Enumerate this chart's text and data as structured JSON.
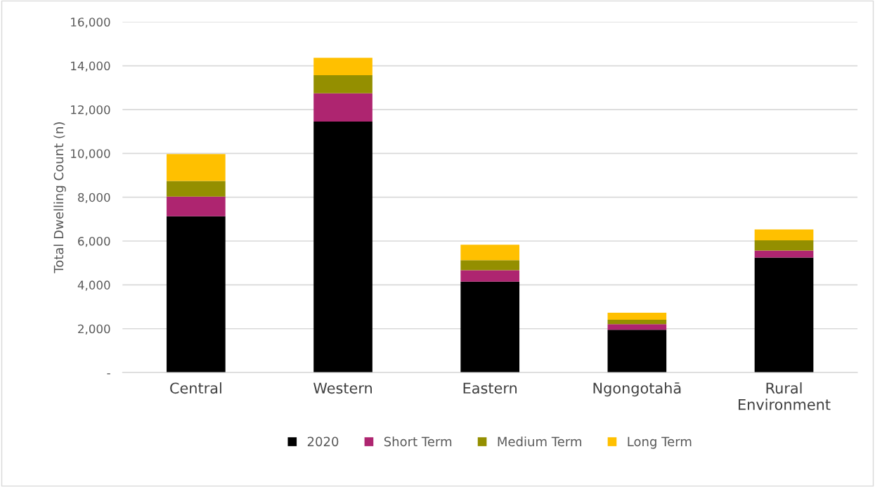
{
  "chart_data": {
    "type": "bar",
    "stacked": true,
    "ylabel": "Total Dwelling Count (n)",
    "categories": [
      "Central",
      "Western",
      "Eastern",
      "Ngongotahā",
      "Rural\nEnvironment"
    ],
    "series": [
      {
        "name": "2020",
        "color": "#000000",
        "values": [
          7130,
          11450,
          4150,
          1950,
          5250
        ]
      },
      {
        "name": "Short Term",
        "color": "#ae2570",
        "values": [
          900,
          1290,
          520,
          260,
          320
        ]
      },
      {
        "name": "Medium Term",
        "color": "#948f00",
        "values": [
          710,
          830,
          460,
          200,
          460
        ]
      },
      {
        "name": "Long Term",
        "color": "#ffc000",
        "values": [
          1230,
          790,
          700,
          320,
          500
        ]
      }
    ],
    "ylim": [
      0,
      16000
    ],
    "yticks": [
      {
        "value": 0,
        "label": "-"
      },
      {
        "value": 2000,
        "label": "2,000"
      },
      {
        "value": 4000,
        "label": "4,000"
      },
      {
        "value": 6000,
        "label": "6,000"
      },
      {
        "value": 8000,
        "label": "8,000"
      },
      {
        "value": 10000,
        "label": "10,000"
      },
      {
        "value": 12000,
        "label": "12,000"
      },
      {
        "value": 14000,
        "label": "14,000"
      },
      {
        "value": 16000,
        "label": "16,000"
      }
    ],
    "grid": "y",
    "legend": "bottom"
  }
}
